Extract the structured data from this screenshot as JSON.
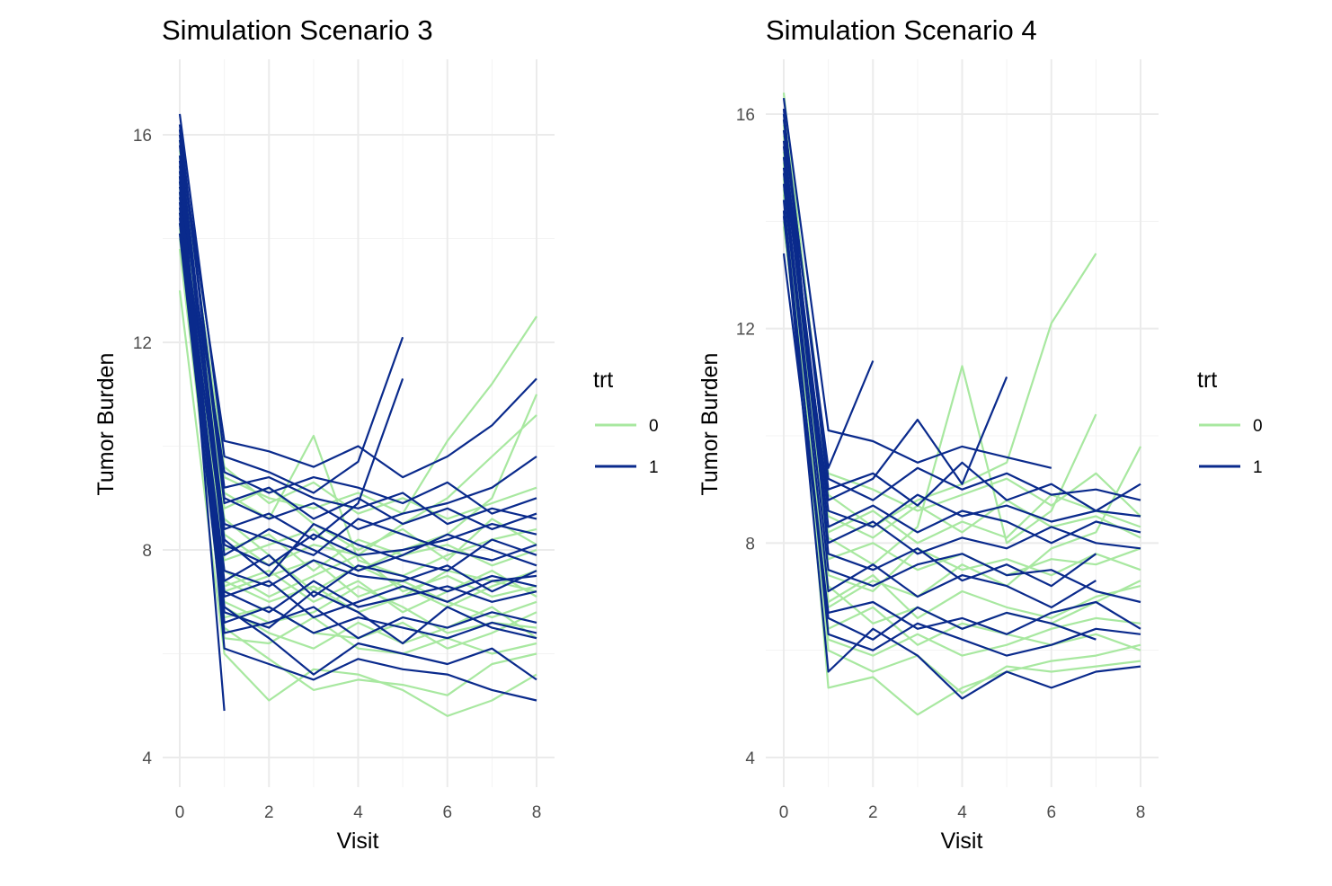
{
  "colors": {
    "trt0": "#a8e8a0",
    "trt1": "#0a2a8c"
  },
  "chart_data": [
    {
      "type": "line",
      "title": "Simulation Scenario 3",
      "xlabel": "Visit",
      "ylabel": "Tumor Burden",
      "xlim": [
        0,
        8
      ],
      "ylim": [
        3.5,
        17.2
      ],
      "xticks": [
        0,
        2,
        4,
        6,
        8
      ],
      "xtick_labels": [
        "0",
        "2",
        "4",
        "6",
        "8"
      ],
      "yticks": [
        4,
        8,
        12,
        16
      ],
      "ytick_labels": [
        "4",
        "8",
        "12",
        "16"
      ],
      "legend": {
        "title": "trt",
        "placement": "right",
        "entries": [
          "0",
          "1"
        ]
      },
      "series": [
        {
          "trt": "0",
          "values": [
            15.2,
            9.1,
            8.6,
            10.2,
            7.8,
            7.5,
            7.9,
            8.2,
            8.4
          ]
        },
        {
          "trt": "0",
          "values": [
            14.8,
            7.4,
            7.0,
            7.3,
            6.8,
            7.1,
            7.6,
            7.4,
            7.2
          ]
        },
        {
          "trt": "0",
          "values": [
            13.0,
            6.0,
            5.1,
            5.7,
            5.6,
            5.3,
            4.8,
            5.1,
            5.6
          ]
        },
        {
          "trt": "0",
          "values": [
            15.6,
            8.3,
            7.7,
            8.1,
            7.9,
            8.5,
            9.0,
            9.8,
            10.6
          ]
        },
        {
          "trt": "0",
          "values": [
            14.2,
            6.9,
            6.4,
            6.1,
            6.6,
            6.2,
            6.5,
            6.9,
            6.3
          ]
        },
        {
          "trt": "0",
          "values": [
            15.9,
            9.4,
            9.0,
            8.8,
            9.1,
            8.7,
            10.1,
            11.2,
            12.5
          ]
        },
        {
          "trt": "0",
          "values": [
            14.5,
            7.2,
            7.5,
            7.8,
            7.1,
            7.4,
            7.0,
            6.7,
            7.0
          ]
        },
        {
          "trt": "0",
          "values": [
            15.1,
            8.0,
            8.3,
            7.6,
            8.2,
            7.9,
            8.1,
            7.7,
            8.0
          ]
        },
        {
          "trt": "0",
          "values": [
            13.8,
            6.5,
            5.9,
            5.3,
            5.5,
            5.4,
            5.2,
            5.8,
            6.0
          ]
        },
        {
          "trt": "0",
          "values": [
            14.9,
            7.8,
            8.1,
            8.4,
            7.6,
            8.0,
            8.3,
            9.0,
            11.0
          ]
        },
        {
          "trt": "0",
          "values": [
            15.4,
            8.6,
            7.9,
            7.2,
            7.7,
            7.3,
            6.9,
            7.3,
            7.6
          ]
        },
        {
          "trt": "0",
          "values": [
            14.1,
            6.7,
            6.9,
            6.4,
            6.3,
            6.6,
            6.1,
            6.4,
            6.8
          ]
        },
        {
          "trt": "0",
          "values": [
            15.0,
            7.6,
            7.1,
            7.5,
            7.9,
            7.2,
            7.5,
            7.1,
            7.3
          ]
        },
        {
          "trt": "0",
          "values": [
            14.6,
            7.0,
            6.6,
            6.8,
            7.3,
            6.9,
            6.4,
            6.6,
            6.5
          ]
        },
        {
          "trt": "0",
          "values": [
            15.3,
            8.8,
            9.2,
            8.5,
            8.0,
            8.4,
            7.8,
            8.6,
            8.1
          ]
        },
        {
          "trt": "0",
          "values": [
            14.3,
            6.3,
            6.2,
            6.7,
            6.1,
            6.0,
            6.3,
            6.0,
            6.2
          ]
        },
        {
          "trt": "0",
          "values": [
            15.7,
            9.6,
            8.9,
            9.3,
            8.7,
            9.0,
            8.6,
            8.9,
            9.2
          ]
        },
        {
          "trt": "0",
          "values": [
            14.0,
            7.3,
            7.6,
            7.0,
            7.4,
            6.8,
            7.2,
            7.6,
            7.1
          ]
        },
        {
          "trt": "1",
          "values": [
            16.4,
            9.8,
            9.5,
            9.1,
            9.7,
            12.1
          ]
        },
        {
          "trt": "1",
          "values": [
            15.8,
            8.4,
            8.7,
            8.2,
            8.9,
            11.3
          ]
        },
        {
          "trt": "1",
          "values": [
            15.2,
            4.9
          ]
        },
        {
          "trt": "1",
          "values": [
            14.9,
            7.2,
            6.8,
            7.4,
            6.9,
            7.1,
            7.3,
            7.0,
            7.2
          ]
        },
        {
          "trt": "1",
          "values": [
            16.0,
            9.2,
            9.4,
            9.0,
            8.8,
            9.1,
            8.5,
            8.8,
            8.6
          ]
        },
        {
          "trt": "1",
          "values": [
            15.5,
            6.1,
            5.8,
            5.5,
            5.9,
            5.7,
            5.6,
            5.3,
            5.1
          ]
        },
        {
          "trt": "1",
          "values": [
            14.6,
            8.1,
            7.7,
            8.3,
            7.9,
            8.0,
            8.2,
            8.5,
            8.3
          ]
        },
        {
          "trt": "1",
          "values": [
            15.9,
            10.1,
            9.9,
            9.6,
            10.0,
            9.4,
            9.8,
            10.4,
            11.3
          ]
        },
        {
          "trt": "1",
          "values": [
            15.1,
            6.6,
            6.9,
            6.4,
            6.7,
            6.5,
            6.3,
            6.6,
            6.4
          ]
        },
        {
          "trt": "1",
          "values": [
            14.4,
            7.6,
            7.3,
            7.8,
            7.5,
            7.4,
            7.7,
            7.2,
            7.6
          ]
        },
        {
          "trt": "1",
          "values": [
            16.2,
            9.0,
            8.6,
            8.9,
            8.4,
            8.7,
            8.9,
            9.2,
            9.8
          ]
        },
        {
          "trt": "1",
          "values": [
            15.3,
            6.9,
            6.3,
            5.6,
            6.2,
            6.0,
            5.8,
            6.1,
            5.5
          ]
        },
        {
          "trt": "1",
          "values": [
            14.8,
            8.5,
            8.2,
            7.9,
            8.6,
            8.3,
            8.0,
            7.8,
            8.1
          ]
        },
        {
          "trt": "1",
          "values": [
            15.6,
            7.9,
            8.4,
            8.0,
            7.6,
            7.9,
            8.3,
            8.0,
            7.7
          ]
        },
        {
          "trt": "1",
          "values": [
            14.1,
            6.4,
            6.6,
            6.9,
            6.3,
            6.7,
            6.5,
            6.8,
            6.6
          ]
        },
        {
          "trt": "1",
          "values": [
            15.0,
            9.5,
            9.1,
            9.4,
            9.2,
            8.9,
            9.3,
            8.7,
            9.0
          ]
        },
        {
          "trt": "1",
          "values": [
            14.7,
            7.4,
            7.9,
            7.1,
            7.7,
            7.5,
            7.2,
            7.5,
            7.3
          ]
        },
        {
          "trt": "1",
          "values": [
            16.1,
            8.9,
            9.2,
            8.6,
            9.0,
            8.5,
            8.8,
            8.4,
            8.7
          ]
        },
        {
          "trt": "1",
          "values": [
            14.3,
            6.8,
            6.5,
            7.2,
            6.8,
            6.2,
            6.9,
            6.5,
            6.3
          ]
        },
        {
          "trt": "1",
          "values": [
            15.4,
            8.2,
            7.5,
            8.5,
            8.1,
            7.8,
            7.6,
            8.2,
            7.9
          ]
        },
        {
          "trt": "1",
          "values": [
            14.5,
            7.1,
            7.4,
            6.7,
            7.0,
            7.3,
            7.0,
            7.4,
            7.5
          ]
        }
      ]
    },
    {
      "type": "line",
      "title": "Simulation Scenario 4",
      "xlabel": "Visit",
      "ylabel": "Tumor Burden",
      "xlim": [
        0,
        8
      ],
      "ylim": [
        3.5,
        17.2
      ],
      "xticks": [
        0,
        2,
        4,
        6,
        8
      ],
      "xtick_labels": [
        "0",
        "2",
        "4",
        "6",
        "8"
      ],
      "yticks": [
        4,
        8,
        12,
        16
      ],
      "ytick_labels": [
        "4",
        "8",
        "12",
        "16"
      ],
      "legend": {
        "title": "trt",
        "placement": "right",
        "entries": [
          "0",
          "1"
        ]
      },
      "series": [
        {
          "trt": "0",
          "values": [
            16.4,
            8.9,
            8.3,
            8.8,
            9.1,
            9.5,
            12.1,
            13.4
          ]
        },
        {
          "trt": "0",
          "values": [
            15.1,
            5.3,
            5.5,
            4.8,
            5.3,
            5.6,
            5.8,
            5.9,
            6.1
          ]
        },
        {
          "trt": "0",
          "values": [
            14.2,
            6.8,
            7.3,
            7.0,
            7.6,
            7.2,
            7.9,
            8.2,
            9.8
          ]
        },
        {
          "trt": "0",
          "values": [
            15.8,
            8.1,
            7.6,
            8.3,
            11.3,
            8.0,
            8.6,
            10.4
          ]
        },
        {
          "trt": "0",
          "values": [
            13.9,
            7.2,
            6.5,
            6.8,
            6.4,
            6.7,
            6.5,
            6.9,
            7.3
          ]
        },
        {
          "trt": "0",
          "values": [
            16.0,
            9.3,
            9.0,
            8.6,
            8.9,
            9.2,
            8.7,
            9.3,
            8.5
          ]
        },
        {
          "trt": "0",
          "values": [
            14.8,
            6.2,
            5.9,
            6.3,
            5.9,
            6.1,
            6.4,
            6.6,
            6.5
          ]
        },
        {
          "trt": "0",
          "values": [
            15.3,
            7.7,
            8.0,
            7.5,
            7.8,
            7.4,
            7.7,
            7.6,
            7.9
          ]
        },
        {
          "trt": "0",
          "values": [
            14.5,
            6.9,
            7.4,
            6.6,
            7.1,
            6.8,
            6.6,
            7.0,
            7.2
          ]
        },
        {
          "trt": "0",
          "values": [
            15.6,
            8.5,
            8.1,
            8.7,
            8.2,
            8.8,
            8.3,
            8.5,
            8.1
          ]
        },
        {
          "trt": "0",
          "values": [
            14.0,
            6.4,
            6.8,
            6.1,
            6.5,
            6.3,
            6.1,
            6.3,
            6.0
          ]
        },
        {
          "trt": "0",
          "values": [
            15.9,
            7.4,
            7.1,
            7.9,
            7.5,
            7.7,
            7.4,
            7.8,
            7.5
          ]
        },
        {
          "trt": "0",
          "values": [
            14.6,
            6.0,
            5.6,
            5.9,
            5.2,
            5.7,
            5.6,
            5.7,
            5.8
          ]
        },
        {
          "trt": "0",
          "values": [
            15.2,
            8.2,
            8.6,
            8.0,
            8.4,
            8.1,
            8.9,
            8.6,
            8.3
          ]
        },
        {
          "trt": "1",
          "values": [
            16.3,
            10.1,
            9.9,
            9.5,
            9.8,
            9.6,
            9.4
          ]
        },
        {
          "trt": "1",
          "values": [
            15.7,
            9.4,
            11.4
          ]
        },
        {
          "trt": "1",
          "values": [
            15.0,
            8.8,
            9.2,
            10.3,
            9.1,
            11.1
          ]
        },
        {
          "trt": "1",
          "values": [
            14.2,
            5.6,
            6.4,
            5.9,
            5.1,
            5.6,
            5.3,
            5.6,
            5.7
          ]
        },
        {
          "trt": "1",
          "values": [
            16.1,
            7.8,
            7.5,
            7.9,
            7.3,
            7.6,
            7.2,
            7.8
          ]
        },
        {
          "trt": "1",
          "values": [
            13.4,
            6.7,
            6.9,
            6.4,
            6.6,
            6.3,
            6.7,
            6.9,
            6.4
          ]
        },
        {
          "trt": "1",
          "values": [
            15.5,
            8.6,
            8.3,
            8.9,
            8.5,
            8.7,
            8.4,
            8.6,
            9.1
          ]
        },
        {
          "trt": "1",
          "values": [
            14.7,
            7.1,
            7.6,
            7.0,
            7.4,
            7.2,
            6.8,
            7.3
          ]
        },
        {
          "trt": "1",
          "values": [
            15.9,
            9.2,
            8.8,
            9.4,
            9.0,
            9.3,
            8.9,
            9.0,
            8.8
          ]
        },
        {
          "trt": "1",
          "values": [
            14.4,
            6.3,
            6.0,
            6.5,
            6.2,
            5.9,
            6.1,
            6.4,
            6.3
          ]
        },
        {
          "trt": "1",
          "values": [
            15.2,
            8.0,
            8.4,
            7.8,
            8.1,
            7.9,
            8.3,
            8.0,
            7.9
          ]
        },
        {
          "trt": "1",
          "values": [
            14.9,
            7.5,
            7.2,
            7.6,
            7.8,
            7.4,
            7.5,
            7.1,
            6.9
          ]
        },
        {
          "trt": "1",
          "values": [
            16.0,
            9.0,
            9.3,
            8.7,
            9.5,
            8.8,
            9.1,
            8.6,
            8.5
          ]
        },
        {
          "trt": "1",
          "values": [
            14.1,
            6.6,
            6.2,
            6.8,
            6.4,
            6.7,
            6.5,
            6.2
          ]
        },
        {
          "trt": "1",
          "values": [
            15.4,
            8.3,
            8.7,
            8.2,
            8.6,
            8.4,
            8.0,
            8.4,
            8.2
          ]
        }
      ]
    }
  ]
}
